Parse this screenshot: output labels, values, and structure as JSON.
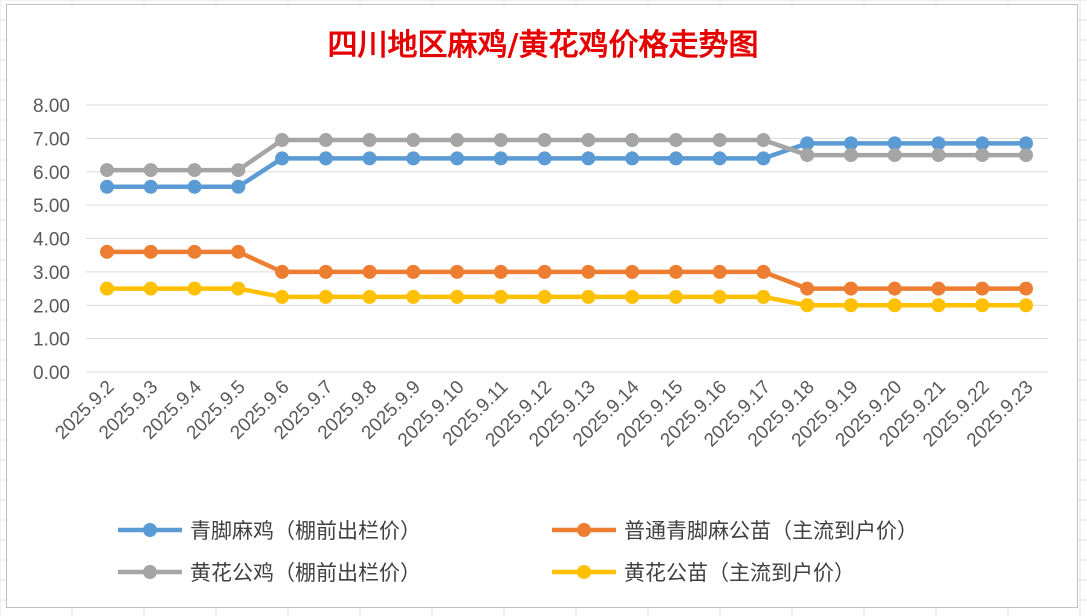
{
  "chart_data": {
    "type": "line",
    "title": "四川地区麻鸡/黄花鸡价格走势图",
    "xlabel": "",
    "ylabel": "",
    "ylim": [
      0,
      8
    ],
    "yticks": [
      "0.00",
      "1.00",
      "2.00",
      "3.00",
      "4.00",
      "5.00",
      "6.00",
      "7.00",
      "8.00"
    ],
    "grid": true,
    "legend_position": "bottom",
    "categories": [
      "2025.9.2",
      "2025.9.3",
      "2025.9.4",
      "2025.9.5",
      "2025.9.6",
      "2025.9.7",
      "2025.9.8",
      "2025.9.9",
      "2025.9.10",
      "2025.9.11",
      "2025.9.12",
      "2025.9.13",
      "2025.9.14",
      "2025.9.15",
      "2025.9.16",
      "2025.9.17",
      "2025.9.18",
      "2025.9.19",
      "2025.9.20",
      "2025.9.21",
      "2025.9.22",
      "2025.9.23"
    ],
    "series": [
      {
        "name": "青脚麻鸡（棚前出栏价）",
        "color": "#5b9bd5",
        "values": [
          5.55,
          5.55,
          5.55,
          5.55,
          6.4,
          6.4,
          6.4,
          6.4,
          6.4,
          6.4,
          6.4,
          6.4,
          6.4,
          6.4,
          6.4,
          6.4,
          6.85,
          6.85,
          6.85,
          6.85,
          6.85,
          6.85
        ]
      },
      {
        "name": "普通青脚麻公苗（主流到户价）",
        "color": "#ed7d31",
        "values": [
          3.6,
          3.6,
          3.6,
          3.6,
          3.0,
          3.0,
          3.0,
          3.0,
          3.0,
          3.0,
          3.0,
          3.0,
          3.0,
          3.0,
          3.0,
          3.0,
          2.5,
          2.5,
          2.5,
          2.5,
          2.5,
          2.5
        ]
      },
      {
        "name": "黄花公鸡（棚前出栏价）",
        "color": "#a5a5a5",
        "values": [
          6.05,
          6.05,
          6.05,
          6.05,
          6.95,
          6.95,
          6.95,
          6.95,
          6.95,
          6.95,
          6.95,
          6.95,
          6.95,
          6.95,
          6.95,
          6.95,
          6.5,
          6.5,
          6.5,
          6.5,
          6.5,
          6.5
        ]
      },
      {
        "name": "黄花公苗（主流到户价）",
        "color": "#ffc000",
        "values": [
          2.5,
          2.5,
          2.5,
          2.5,
          2.25,
          2.25,
          2.25,
          2.25,
          2.25,
          2.25,
          2.25,
          2.25,
          2.25,
          2.25,
          2.25,
          2.25,
          2.0,
          2.0,
          2.0,
          2.0,
          2.0,
          2.0
        ]
      }
    ]
  }
}
